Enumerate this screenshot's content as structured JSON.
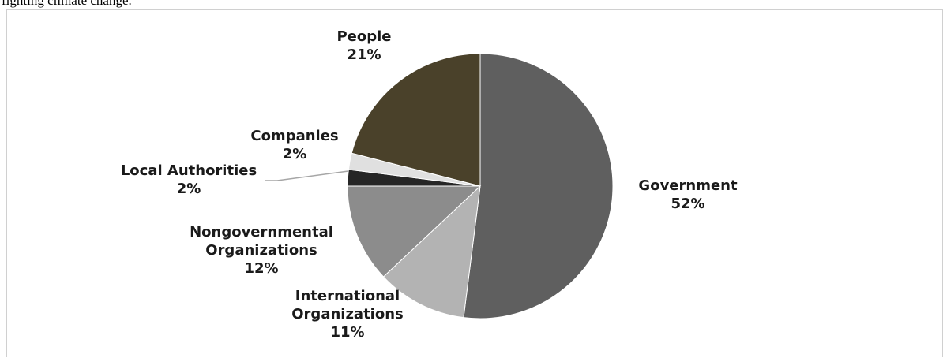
{
  "caption": "fighting climate change.",
  "chart_data": {
    "type": "pie",
    "title": "",
    "start_angle_deg": 0,
    "direction": "clockwise",
    "slices": [
      {
        "label": "Government",
        "value": 52,
        "value_label": "52%",
        "color": "#5f5f5f"
      },
      {
        "label": "International Organizations",
        "value": 11,
        "value_label": "11%",
        "color": "#b3b3b3"
      },
      {
        "label": "Nongovernmental Organizations",
        "value": 12,
        "value_label": "12%",
        "color": "#8c8c8c"
      },
      {
        "label": "Local Authorities",
        "value": 2,
        "value_label": "2%",
        "color": "#262626"
      },
      {
        "label": "Companies",
        "value": 2,
        "value_label": "2%",
        "color": "#e0e0e0"
      },
      {
        "label": "People",
        "value": 21,
        "value_label": "21%",
        "color": "#4a412a"
      }
    ]
  }
}
